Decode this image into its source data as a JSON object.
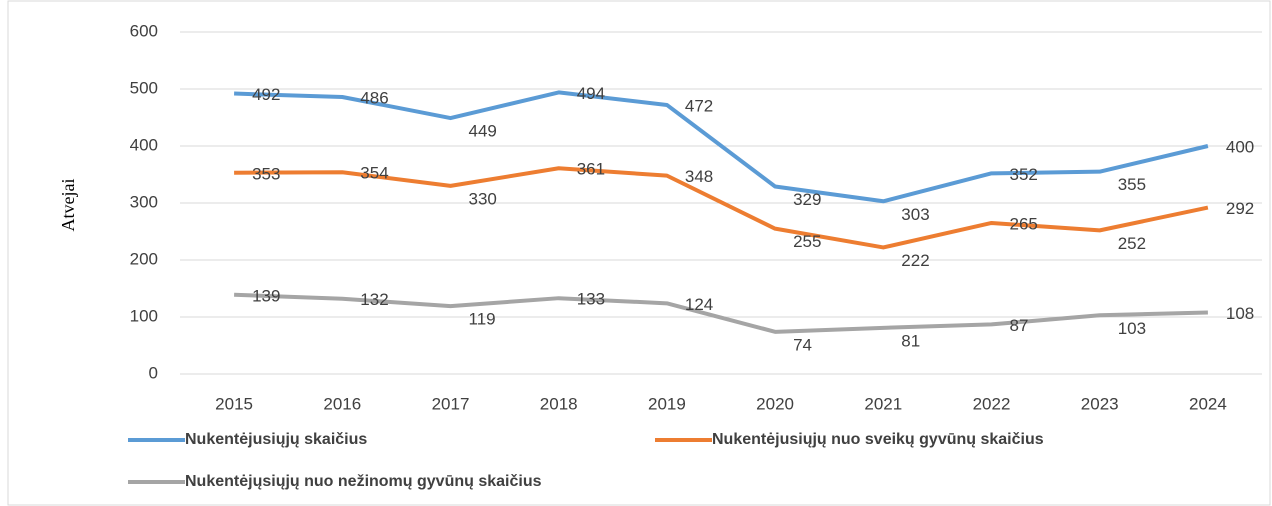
{
  "chart_data": {
    "type": "line",
    "ylabel": "Atvejai",
    "categories": [
      "2015",
      "2016",
      "2017",
      "2018",
      "2019",
      "2020",
      "2021",
      "2022",
      "2023",
      "2024"
    ],
    "series": [
      {
        "name": "Nukentėjusiųjų skaičius",
        "color": "#5b9bd5",
        "values": [
          492,
          486,
          449,
          494,
          472,
          329,
          303,
          352,
          355,
          400
        ]
      },
      {
        "name": "Nukentėjusiųjų nuo sveikų gyvūnų skaičius",
        "color": "#ed7d31",
        "values": [
          353,
          354,
          330,
          361,
          348,
          255,
          222,
          265,
          252,
          292
        ]
      },
      {
        "name": "Nukentėjųsiųjų nuo nežinomų gyvūnų skaičius",
        "color": "#a5a5a5",
        "values": [
          139,
          132,
          119,
          133,
          124,
          74,
          81,
          87,
          103,
          108
        ]
      }
    ],
    "ylim": [
      0,
      600
    ],
    "yticks": [
      0,
      100,
      200,
      300,
      400,
      500,
      600
    ],
    "grid": true
  }
}
